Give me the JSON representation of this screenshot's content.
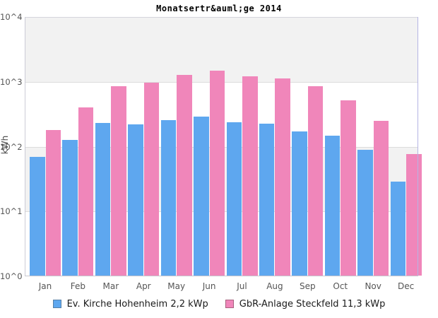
{
  "chart_data": {
    "type": "bar",
    "title": "Monatsertr&auml;ge 2014",
    "ylabel": "kWh",
    "y_scale": "log",
    "ylim": [
      1,
      10000
    ],
    "y_ticks_top_to_bottom": [
      "10^4",
      "10^3",
      "10^2",
      "10^1",
      "10^0"
    ],
    "grid": true,
    "band_colors": [
      "#f2f2f2",
      "#ffffff"
    ],
    "legend_position": "bottom",
    "categories": [
      "Jan",
      "Feb",
      "Mar",
      "Apr",
      "May",
      "Jun",
      "Jul",
      "Aug",
      "Sep",
      "Oct",
      "Nov",
      "Dec"
    ],
    "series": [
      {
        "name": "Ev. Kirche Hohenheim 2,2 kWp",
        "color": "#5ea7ef",
        "swatch_border": "#5580a8",
        "values": [
          70,
          126,
          229,
          222,
          258,
          292,
          238,
          228,
          172,
          148,
          90,
          29
        ]
      },
      {
        "name": "GbR-Anlage Steckfeld 11,3 kWp",
        "color": "#f086ba",
        "swatch_border": "#a8607e",
        "values": [
          179,
          407,
          860,
          970,
          1270,
          1500,
          1210,
          1120,
          860,
          520,
          253,
          77
        ]
      }
    ]
  }
}
